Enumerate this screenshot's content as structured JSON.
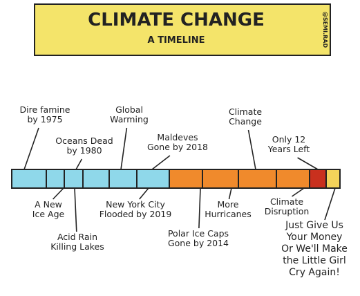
{
  "header": {
    "title": "CLIMATE CHANGE",
    "subtitle": "A TIMELINE",
    "watermark": "@SEMI.RAD"
  },
  "labels_above": [
    {
      "lines": [
        "Dire famine",
        "by 1975"
      ]
    },
    {
      "lines": [
        "Oceans Dead",
        "by 1980"
      ]
    },
    {
      "lines": [
        "Global",
        "Warming"
      ]
    },
    {
      "lines": [
        "Maldeves",
        "Gone by 2018"
      ]
    },
    {
      "lines": [
        "Climate",
        "Change"
      ]
    },
    {
      "lines": [
        "Only 12",
        "Years Left"
      ]
    }
  ],
  "labels_below": [
    {
      "lines": [
        "A New",
        "Ice Age"
      ]
    },
    {
      "lines": [
        "Acid Rain",
        "Killing Lakes"
      ]
    },
    {
      "lines": [
        "New York City",
        "Flooded by 2019"
      ]
    },
    {
      "lines": [
        "Polar Ice Caps",
        "Gone by 2014"
      ]
    },
    {
      "lines": [
        "More",
        "Hurricanes"
      ]
    },
    {
      "lines": [
        "Climate",
        "Disruption"
      ]
    },
    {
      "lines": [
        "Just Give Us",
        "Your Money",
        "Or We'll Make",
        "the Little Girl",
        "Cry Again!"
      ]
    }
  ]
}
